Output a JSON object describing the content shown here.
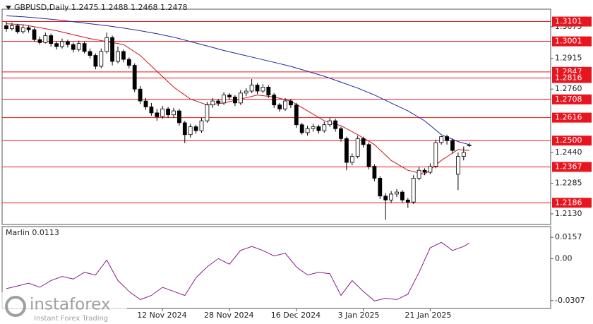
{
  "chart_data": [
    {
      "type": "candlestick",
      "title": "GBPUSD,Daily  1.2475 1.2488 1.2468 1.2478",
      "categories": [
        null,
        null,
        null,
        null,
        null,
        null,
        null,
        null,
        null,
        null,
        null,
        null,
        null,
        null,
        null,
        null,
        null,
        null,
        null,
        null,
        null,
        null,
        null,
        null,
        null,
        null,
        null,
        null,
        "12 Nov 2024",
        null,
        null,
        null,
        null,
        null,
        null,
        null,
        null,
        null,
        null,
        null,
        "28 Nov 2024",
        null,
        null,
        null,
        null,
        null,
        null,
        null,
        null,
        null,
        null,
        null,
        "16 Dec 2024",
        null,
        null,
        null,
        null,
        null,
        null,
        null,
        null,
        null,
        null,
        null,
        "3 Jan 2025",
        null,
        null,
        null,
        null,
        null,
        null,
        null,
        null,
        null,
        null,
        null,
        "21 Jan 2025",
        null,
        null,
        null,
        null,
        null,
        null,
        null
      ],
      "open": [
        1.308,
        1.3065,
        1.308,
        1.305,
        1.307,
        1.306,
        1.301,
        1.2995,
        1.303,
        1.299,
        1.2975,
        1.3,
        1.2985,
        1.296,
        1.299,
        1.295,
        1.293,
        1.2875,
        1.295,
        1.302,
        1.29,
        1.295,
        1.291,
        1.288,
        1.276,
        1.27,
        1.267,
        1.264,
        1.262,
        1.266,
        1.263,
        1.265,
        1.259,
        1.253,
        1.257,
        1.255,
        1.26,
        1.268,
        1.27,
        1.269,
        1.273,
        1.272,
        1.269,
        1.274,
        1.275,
        1.278,
        1.275,
        1.277,
        1.273,
        1.268,
        1.266,
        1.27,
        1.268,
        1.258,
        1.254,
        1.256,
        1.257,
        1.255,
        1.258,
        1.26,
        1.256,
        1.251,
        1.239,
        1.242,
        1.251,
        1.248,
        1.237,
        1.231,
        1.222,
        1.22,
        1.223,
        1.224,
        1.22,
        1.219,
        1.231,
        1.235,
        1.234,
        1.237,
        1.249,
        1.252,
        1.25,
        1.233,
        1.242,
        1.2475
      ],
      "high": [
        1.31,
        1.3095,
        1.309,
        1.3085,
        1.308,
        1.307,
        1.3025,
        1.3045,
        1.304,
        1.3,
        1.3015,
        1.301,
        1.2995,
        1.3005,
        1.3,
        1.2965,
        1.294,
        1.2965,
        1.3045,
        1.303,
        1.2975,
        1.296,
        1.292,
        1.289,
        1.2775,
        1.2715,
        1.269,
        1.266,
        1.2675,
        1.267,
        1.2665,
        1.266,
        1.26,
        1.2585,
        1.258,
        1.2615,
        1.2695,
        1.2715,
        1.271,
        1.2745,
        1.274,
        1.273,
        1.2755,
        1.2765,
        1.2811,
        1.279,
        1.2785,
        1.278,
        1.274,
        1.269,
        1.2715,
        1.271,
        1.269,
        1.259,
        1.2575,
        1.2585,
        1.258,
        1.2595,
        1.2615,
        1.261,
        1.257,
        1.252,
        1.2435,
        1.2525,
        1.252,
        1.249,
        1.238,
        1.232,
        1.2235,
        1.2245,
        1.2255,
        1.225,
        1.221,
        1.2325,
        1.2365,
        1.236,
        1.2385,
        1.2505,
        1.2523,
        1.253,
        1.251,
        1.244,
        1.247,
        1.2488
      ],
      "low": [
        1.305,
        1.3055,
        1.304,
        1.304,
        1.3045,
        1.3,
        1.2985,
        1.299,
        1.2975,
        1.296,
        1.2965,
        1.297,
        1.2945,
        1.295,
        1.294,
        1.2915,
        1.286,
        1.2865,
        1.294,
        1.288,
        1.289,
        1.2895,
        1.2865,
        1.2745,
        1.2685,
        1.2655,
        1.2625,
        1.26,
        1.261,
        1.2615,
        1.2615,
        1.2575,
        1.2487,
        1.2515,
        1.2535,
        1.254,
        1.259,
        1.2665,
        1.2675,
        1.268,
        1.2705,
        1.2675,
        1.268,
        1.2725,
        1.274,
        1.2735,
        1.274,
        1.2715,
        1.2665,
        1.2645,
        1.265,
        1.2665,
        1.2565,
        1.253,
        1.2525,
        1.2545,
        1.2535,
        1.254,
        1.257,
        1.2545,
        1.2495,
        1.235,
        1.2375,
        1.241,
        1.2465,
        1.2355,
        1.2295,
        1.2205,
        1.21,
        1.2185,
        1.2215,
        1.2185,
        1.216,
        1.218,
        1.23,
        1.2325,
        1.233,
        1.236,
        1.248,
        1.248,
        1.2435,
        1.225,
        1.24,
        1.2468
      ],
      "close": [
        1.3065,
        1.308,
        1.305,
        1.307,
        1.306,
        1.301,
        1.2995,
        1.303,
        1.299,
        1.2975,
        1.3,
        1.2985,
        1.296,
        1.299,
        1.295,
        1.293,
        1.2875,
        1.295,
        1.302,
        1.29,
        1.295,
        1.291,
        1.288,
        1.276,
        1.27,
        1.267,
        1.264,
        1.262,
        1.266,
        1.263,
        1.265,
        1.259,
        1.253,
        1.257,
        1.255,
        1.26,
        1.268,
        1.27,
        1.269,
        1.273,
        1.272,
        1.269,
        1.274,
        1.275,
        1.278,
        1.275,
        1.277,
        1.273,
        1.268,
        1.266,
        1.27,
        1.268,
        1.258,
        1.254,
        1.256,
        1.257,
        1.255,
        1.258,
        1.26,
        1.256,
        1.251,
        1.239,
        1.242,
        1.251,
        1.248,
        1.237,
        1.231,
        1.222,
        1.22,
        1.223,
        1.224,
        1.22,
        1.219,
        1.231,
        1.235,
        1.234,
        1.237,
        1.249,
        1.252,
        1.25,
        1.245,
        1.242,
        1.244,
        1.2478
      ],
      "up_color": "#ffffff",
      "down_color": "#000000",
      "ylim": [
        1.208,
        1.316
      ],
      "yticks": [
        1.3075,
        1.2915,
        {
          "value": 1.276,
          "label": "1.2760"
        },
        {
          "value": 1.244,
          "label": "1.2440"
        },
        1.2285,
        {
          "value": 1.213,
          "label": "1.2130"
        }
      ],
      "levels": [
        1.3101,
        1.3001,
        1.2847,
        1.2816,
        1.2708,
        1.2616,
        {
          "value": 1.25,
          "label": "1.2500"
        },
        1.2367,
        1.2186
      ],
      "level_color": "#e8141e",
      "ma": [
        {
          "color": "#c8141e",
          "x": [
            0,
            3,
            6,
            9,
            12,
            15,
            18,
            21,
            24,
            27,
            30,
            33,
            36,
            39,
            42,
            45,
            48,
            51,
            54,
            57,
            60,
            63,
            66,
            69,
            72,
            75,
            78,
            81,
            83
          ],
          "values": [
            1.309,
            1.3085,
            1.307,
            1.3055,
            1.3035,
            1.3015,
            1.3,
            1.2985,
            1.293,
            1.285,
            1.277,
            1.271,
            1.268,
            1.269,
            1.271,
            1.273,
            1.272,
            1.27,
            1.265,
            1.26,
            1.2575,
            1.253,
            1.248,
            1.24,
            1.235,
            1.233,
            1.24,
            1.2455,
            1.245
          ]
        },
        {
          "color": "#1a2a9c",
          "x": [
            0,
            3,
            6,
            9,
            12,
            15,
            18,
            21,
            24,
            27,
            30,
            33,
            36,
            39,
            42,
            45,
            48,
            51,
            54,
            57,
            60,
            63,
            66,
            69,
            72,
            75,
            78,
            81,
            83
          ],
          "values": [
            1.313,
            1.3125,
            1.3118,
            1.311,
            1.31,
            1.309,
            1.308,
            1.3068,
            1.3055,
            1.304,
            1.3022,
            1.3,
            1.2978,
            1.2955,
            1.2935,
            1.2915,
            1.2895,
            1.2875,
            1.285,
            1.2825,
            1.2795,
            1.2765,
            1.273,
            1.269,
            1.265,
            1.26,
            1.253,
            1.2495,
            1.248
          ]
        }
      ]
    },
    {
      "type": "line",
      "title": "Marlin 0.0113",
      "color": "#8b1a8b",
      "x": [
        0,
        2,
        4,
        6,
        8,
        10,
        12,
        14,
        16,
        18,
        20,
        22,
        24,
        26,
        28,
        30,
        32,
        34,
        36,
        38,
        40,
        42,
        44,
        46,
        48,
        50,
        52,
        54,
        56,
        58,
        60,
        62,
        64,
        66,
        68,
        70,
        72,
        74,
        76,
        78,
        80,
        82,
        83
      ],
      "values": [
        -0.022,
        -0.02,
        -0.018,
        -0.021,
        -0.016,
        -0.013,
        -0.015,
        -0.01,
        -0.012,
        -0.001,
        -0.016,
        -0.024,
        -0.03,
        -0.027,
        -0.021,
        -0.024,
        -0.027,
        -0.014,
        -0.006,
        0.0,
        -0.004,
        0.006,
        0.009,
        0.006,
        0.002,
        0.004,
        -0.006,
        -0.012,
        -0.01,
        -0.011,
        -0.027,
        -0.016,
        -0.024,
        -0.031,
        -0.029,
        -0.03,
        -0.026,
        -0.01,
        0.008,
        0.012,
        0.006,
        0.009,
        0.0113
      ],
      "ylim": [
        -0.036,
        0.023
      ],
      "yticks": [
        0.0157,
        {
          "value": 0,
          "label": "0.00"
        },
        -0.0307
      ]
    }
  ],
  "watermark": {
    "brand": "instaforex",
    "tagline": "Instant Forex Trading"
  }
}
